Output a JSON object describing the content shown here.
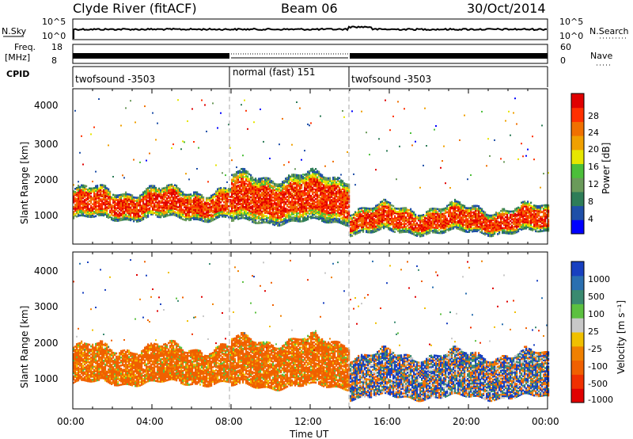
{
  "header": {
    "station": "Clyde River (fitACF)",
    "beam": "Beam 06",
    "date": "30/Oct/2014"
  },
  "top_panels": {
    "nsky_label": "N.Sky",
    "nsky_ticks": [
      "10^5",
      "10^0"
    ],
    "nsearch_label": "N.Search",
    "nsearch_ticks": [
      "10^5",
      "10^0"
    ],
    "freq_label_1": "Freq.",
    "freq_label_2": "[MHz]",
    "freq_ticks": [
      "18",
      "8"
    ],
    "nave_label": "Nave",
    "nave_ticks": [
      "60",
      "0"
    ],
    "cpid_label": "CPID",
    "cpid_segments": [
      {
        "label": "twofsound -3503",
        "start": 0,
        "end": 8
      },
      {
        "label": "normal (fast) 151",
        "start": 8,
        "end": 14
      },
      {
        "label": "twofsound -3503",
        "start": 14,
        "end": 24
      }
    ]
  },
  "power_panel": {
    "ylabel": "Slant Range [km]",
    "yticks": [
      "4000",
      "3000",
      "2000",
      "1000"
    ],
    "colorbar_label": "Power [dB]",
    "colorbar_ticks": [
      "28",
      "24",
      "20",
      "16",
      "12",
      "8",
      "4"
    ],
    "colors": [
      "#0000ff",
      "#1f4fa8",
      "#2e7d58",
      "#6a9a5a",
      "#4cbf3a",
      "#e6e600",
      "#f0a000",
      "#f07000",
      "#ff3000",
      "#e00000"
    ]
  },
  "velocity_panel": {
    "ylabel": "Slant Range [km]",
    "yticks": [
      "4000",
      "3000",
      "2000",
      "1000"
    ],
    "colorbar_label": "Velocity [m s⁻¹]",
    "colorbar_ticks": [
      "1000",
      "500",
      "100",
      "25",
      "-25",
      "-100",
      "-500",
      "-1000"
    ],
    "colors": [
      "#1840c0",
      "#2a6fb0",
      "#3a8a70",
      "#5cc040",
      "#c8c8c8",
      "#f0c000",
      "#f08000",
      "#f06000",
      "#f03000",
      "#e00000"
    ]
  },
  "x_axis": {
    "label": "Time UT",
    "ticks": [
      "00:00",
      "04:00",
      "08:00",
      "12:00",
      "16:00",
      "20:00",
      "00:00"
    ]
  },
  "chart_data": [
    {
      "type": "heatmap",
      "title": "Power",
      "x_range_hours": [
        0,
        24
      ],
      "y_range_km": [
        180,
        4600
      ],
      "colorbar_range_db": [
        0,
        30
      ],
      "description_bands": [
        {
          "t_start": 0,
          "t_end": 8,
          "range_km": [
            900,
            1700
          ],
          "power_db": 26
        },
        {
          "t_start": 8,
          "t_end": 14,
          "range_km": [
            800,
            2100
          ],
          "power_db": 28
        },
        {
          "t_start": 14,
          "t_end": 24,
          "range_km": [
            500,
            1200
          ],
          "power_db": 28
        }
      ]
    },
    {
      "type": "heatmap",
      "title": "Velocity",
      "x_range_hours": [
        0,
        24
      ],
      "y_range_km": [
        180,
        4600
      ],
      "colorbar_range_ms": [
        -1000,
        1000
      ],
      "description_bands": [
        {
          "t_start": 0,
          "t_end": 8,
          "range_km": [
            900,
            1900
          ],
          "velocity_ms": -300
        },
        {
          "t_start": 8,
          "t_end": 14,
          "range_km": [
            800,
            2100
          ],
          "velocity_ms": -400
        },
        {
          "t_start": 14,
          "t_end": 24,
          "range_km": [
            500,
            1700
          ],
          "velocity_ms": 200
        }
      ]
    }
  ]
}
